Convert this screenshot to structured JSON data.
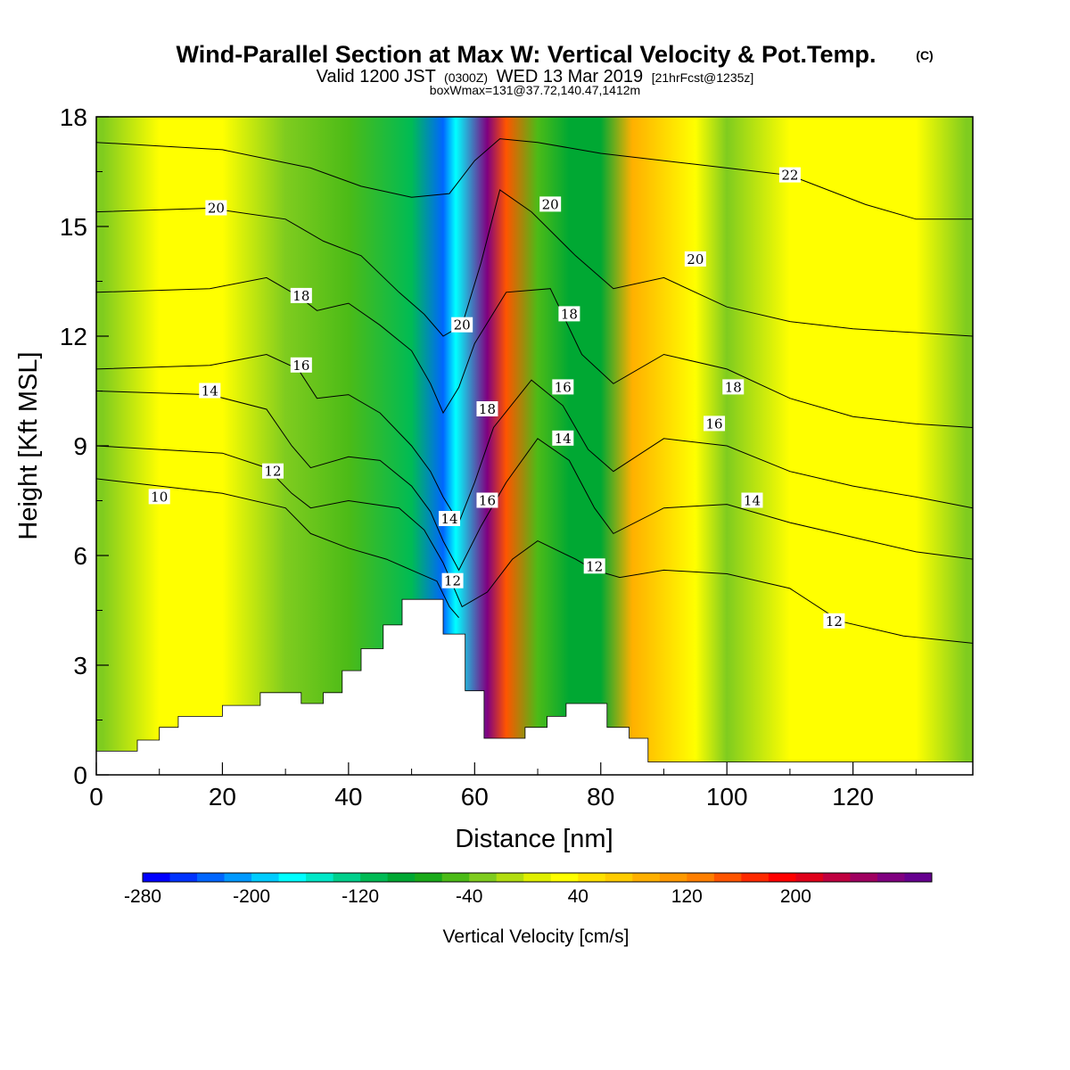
{
  "chart_data": {
    "type": "heatmap",
    "title": {
      "main": "Wind-Parallel Section at Max W: Vertical Velocity & Pot.Temp.",
      "copyright": "(C)",
      "valid_prefix": "Valid 1200 JST",
      "valid_zulu": "(0300Z)",
      "valid_date": "WED 13 Mar 2019",
      "forecast": "[21hrFcst@1235z]",
      "box_line": "boxWmax=131@37.72,140.47,1412m"
    },
    "xlabel": "Distance [nm]",
    "ylabel": "Height [Kft MSL]",
    "xlim": [
      0,
      139
    ],
    "ylim": [
      0,
      18
    ],
    "x_ticks": [
      0,
      20,
      40,
      60,
      80,
      100,
      120
    ],
    "y_ticks": [
      0,
      3,
      6,
      9,
      12,
      15,
      18
    ],
    "colorbar": {
      "label": "Vertical Velocity [cm/s]",
      "min": -280,
      "max": 300,
      "step": 20,
      "tick_values": [
        -280,
        -200,
        -120,
        -40,
        40,
        120,
        200
      ],
      "colors": [
        "#0000ff",
        "#0033ff",
        "#0066ff",
        "#0099ff",
        "#00ccff",
        "#00ffff",
        "#00e8c8",
        "#00d08c",
        "#00bb55",
        "#00a833",
        "#1aaa1a",
        "#4cbb17",
        "#7fcc1f",
        "#b2dd10",
        "#e0ef00",
        "#ffff00",
        "#ffe100",
        "#ffcc00",
        "#ffb000",
        "#ff9900",
        "#ff7f00",
        "#ff5500",
        "#ff2a00",
        "#ff0000",
        "#e0001a",
        "#c00040",
        "#a00060",
        "#800080",
        "#66008f"
      ]
    },
    "velocity_field": [
      {
        "x": 1,
        "w": -40
      },
      {
        "x": 10,
        "w": 25
      },
      {
        "x": 20,
        "w": 30
      },
      {
        "x": 30,
        "w": -30
      },
      {
        "x": 40,
        "w": -60
      },
      {
        "x": 50,
        "w": -110
      },
      {
        "x": 55,
        "w": -230
      },
      {
        "x": 57,
        "w": -180
      },
      {
        "x": 62,
        "w": 260
      },
      {
        "x": 65,
        "w": 150
      },
      {
        "x": 70,
        "w": -60
      },
      {
        "x": 75,
        "w": -100
      },
      {
        "x": 80,
        "w": -90
      },
      {
        "x": 85,
        "w": 80
      },
      {
        "x": 95,
        "w": 30
      },
      {
        "x": 100,
        "w": -30
      },
      {
        "x": 110,
        "w": 30
      },
      {
        "x": 120,
        "w": 20
      },
      {
        "x": 130,
        "w": 35
      },
      {
        "x": 138,
        "w": -40
      }
    ],
    "terrain": [
      {
        "x": 0,
        "h": 0.65
      },
      {
        "x": 6.5,
        "h": 0.95
      },
      {
        "x": 10,
        "h": 1.3
      },
      {
        "x": 13,
        "h": 1.6
      },
      {
        "x": 20,
        "h": 1.9
      },
      {
        "x": 26,
        "h": 2.25
      },
      {
        "x": 32.5,
        "h": 1.95
      },
      {
        "x": 36,
        "h": 2.25
      },
      {
        "x": 39,
        "h": 2.85
      },
      {
        "x": 42,
        "h": 3.45
      },
      {
        "x": 45.5,
        "h": 4.1
      },
      {
        "x": 48.5,
        "h": 4.8
      },
      {
        "x": 55,
        "h": 3.85
      },
      {
        "x": 58.5,
        "h": 2.3
      },
      {
        "x": 61.5,
        "h": 1.0
      },
      {
        "x": 68,
        "h": 1.3
      },
      {
        "x": 71.5,
        "h": 1.6
      },
      {
        "x": 74.5,
        "h": 1.95
      },
      {
        "x": 81,
        "h": 1.3
      },
      {
        "x": 84.5,
        "h": 1.0
      },
      {
        "x": 87.5,
        "h": 0.35
      },
      {
        "x": 139,
        "h": 0.35
      }
    ],
    "isentropes": [
      {
        "value": 10,
        "label": "10",
        "label_at": [
          10,
          7.6
        ],
        "points": [
          [
            0,
            8.1
          ],
          [
            20,
            7.7
          ],
          [
            30,
            7.3
          ],
          [
            34,
            6.6
          ],
          [
            40,
            6.2
          ],
          [
            46,
            5.9
          ],
          [
            50,
            5.6
          ],
          [
            54,
            5.3
          ],
          [
            56,
            4.6
          ],
          [
            57.5,
            4.3
          ]
        ]
      },
      {
        "value": 12,
        "label": "12",
        "label_at": [
          28,
          8.3
        ],
        "points": [
          [
            0,
            9.0
          ],
          [
            20,
            8.8
          ],
          [
            27,
            8.4
          ],
          [
            31,
            7.7
          ],
          [
            34,
            7.3
          ],
          [
            40,
            7.5
          ],
          [
            48,
            7.3
          ],
          [
            52,
            6.7
          ],
          [
            55,
            5.8
          ],
          [
            56.5,
            5.2
          ],
          [
            58,
            4.6
          ],
          [
            62,
            5.0
          ],
          [
            66,
            5.9
          ],
          [
            70,
            6.4
          ],
          [
            76,
            5.9
          ],
          [
            79,
            5.6
          ],
          [
            83,
            5.4
          ],
          [
            90,
            5.6
          ],
          [
            100,
            5.5
          ],
          [
            110,
            5.1
          ],
          [
            118,
            4.2
          ],
          [
            128,
            3.8
          ],
          [
            139,
            3.6
          ]
        ]
      },
      {
        "value": 14,
        "label": "14",
        "label_at": [
          18,
          10.5
        ],
        "points": [
          [
            0,
            10.5
          ],
          [
            18,
            10.4
          ],
          [
            27,
            10.0
          ],
          [
            31,
            9.0
          ],
          [
            34,
            8.4
          ],
          [
            40,
            8.7
          ],
          [
            45,
            8.6
          ],
          [
            50,
            7.9
          ],
          [
            53,
            7.2
          ],
          [
            55,
            6.4
          ],
          [
            57.5,
            5.6
          ],
          [
            61,
            6.8
          ],
          [
            65,
            8.0
          ],
          [
            70,
            9.2
          ],
          [
            75,
            8.6
          ],
          [
            79,
            7.3
          ],
          [
            82,
            6.6
          ],
          [
            90,
            7.3
          ],
          [
            100,
            7.4
          ],
          [
            110,
            6.9
          ],
          [
            120,
            6.5
          ],
          [
            130,
            6.1
          ],
          [
            139,
            5.9
          ]
        ]
      },
      {
        "value": 16,
        "label": "16",
        "label_at": [
          32.5,
          11.2
        ],
        "points": [
          [
            0,
            11.1
          ],
          [
            18,
            11.2
          ],
          [
            27,
            11.5
          ],
          [
            32,
            11.1
          ],
          [
            35,
            10.3
          ],
          [
            40,
            10.4
          ],
          [
            45,
            9.9
          ],
          [
            50,
            9.0
          ],
          [
            53,
            8.3
          ],
          [
            55,
            7.6
          ],
          [
            57.5,
            6.9
          ],
          [
            60,
            8.0
          ],
          [
            63,
            9.5
          ],
          [
            69,
            10.8
          ],
          [
            74,
            10.1
          ],
          [
            78,
            8.9
          ],
          [
            82,
            8.3
          ],
          [
            90,
            9.2
          ],
          [
            100,
            9.0
          ],
          [
            110,
            8.3
          ],
          [
            120,
            7.9
          ],
          [
            130,
            7.6
          ],
          [
            139,
            7.3
          ]
        ]
      },
      {
        "value": 18,
        "label": "18",
        "label_at": [
          32.5,
          13.1
        ],
        "points": [
          [
            0,
            13.2
          ],
          [
            18,
            13.3
          ],
          [
            27,
            13.6
          ],
          [
            32,
            13.1
          ],
          [
            35,
            12.7
          ],
          [
            40,
            12.9
          ],
          [
            45,
            12.3
          ],
          [
            50,
            11.6
          ],
          [
            53,
            10.7
          ],
          [
            55,
            9.9
          ],
          [
            57.5,
            10.6
          ],
          [
            60,
            11.8
          ],
          [
            65,
            13.2
          ],
          [
            72,
            13.3
          ],
          [
            77,
            11.5
          ],
          [
            82,
            10.7
          ],
          [
            90,
            11.5
          ],
          [
            100,
            11.1
          ],
          [
            110,
            10.3
          ],
          [
            120,
            9.8
          ],
          [
            130,
            9.6
          ],
          [
            139,
            9.5
          ]
        ]
      },
      {
        "value": 20,
        "label": "20",
        "label_at": [
          19,
          15.5
        ],
        "points": [
          [
            0,
            15.4
          ],
          [
            18,
            15.5
          ],
          [
            30,
            15.2
          ],
          [
            36,
            14.6
          ],
          [
            42,
            14.2
          ],
          [
            48,
            13.2
          ],
          [
            52,
            12.6
          ],
          [
            55,
            12.0
          ],
          [
            58,
            12.3
          ],
          [
            61,
            14.0
          ],
          [
            64,
            16.0
          ],
          [
            69,
            15.4
          ],
          [
            76,
            14.2
          ],
          [
            82,
            13.3
          ],
          [
            90,
            13.6
          ],
          [
            100,
            12.8
          ],
          [
            110,
            12.4
          ],
          [
            120,
            12.2
          ],
          [
            139,
            12.0
          ]
        ]
      },
      {
        "value": 22,
        "label": "22",
        "label_at": [
          110,
          16.4
        ],
        "points": [
          [
            0,
            17.3
          ],
          [
            20,
            17.1
          ],
          [
            34,
            16.6
          ],
          [
            42,
            16.1
          ],
          [
            50,
            15.8
          ],
          [
            56,
            15.9
          ],
          [
            60,
            16.8
          ],
          [
            64,
            17.4
          ],
          [
            70,
            17.3
          ],
          [
            80,
            17.0
          ],
          [
            95,
            16.7
          ],
          [
            110,
            16.4
          ],
          [
            122,
            15.6
          ],
          [
            130,
            15.2
          ],
          [
            139,
            15.2
          ]
        ]
      }
    ],
    "extra_labels": [
      {
        "label": "12",
        "at": [
          56.5,
          5.3
        ]
      },
      {
        "label": "14",
        "at": [
          56,
          7.0
        ]
      },
      {
        "label": "16",
        "at": [
          62,
          7.5
        ]
      },
      {
        "label": "18",
        "at": [
          62,
          10.0
        ]
      },
      {
        "label": "20",
        "at": [
          58,
          12.3
        ]
      },
      {
        "label": "12",
        "at": [
          79,
          5.7
        ]
      },
      {
        "label": "14",
        "at": [
          74,
          9.2
        ]
      },
      {
        "label": "16",
        "at": [
          74,
          10.6
        ]
      },
      {
        "label": "18",
        "at": [
          75,
          12.6
        ]
      },
      {
        "label": "20",
        "at": [
          72,
          15.6
        ]
      },
      {
        "label": "20",
        "at": [
          95,
          14.1
        ]
      },
      {
        "label": "18",
        "at": [
          101,
          10.6
        ]
      },
      {
        "label": "16",
        "at": [
          98,
          9.6
        ]
      },
      {
        "label": "14",
        "at": [
          104,
          7.5
        ]
      },
      {
        "label": "12",
        "at": [
          117,
          4.2
        ]
      }
    ]
  }
}
